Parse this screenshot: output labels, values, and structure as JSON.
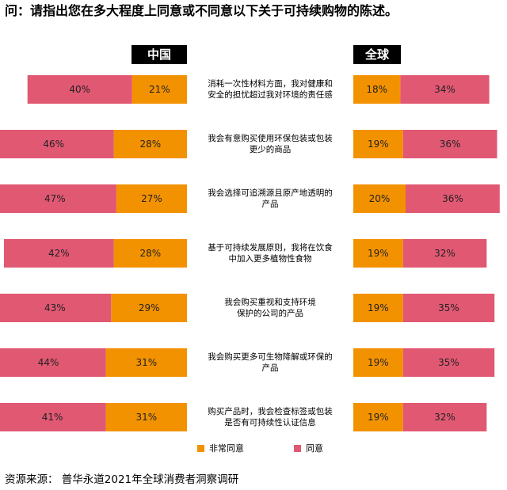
{
  "question": "问：请指出您在多大程度上同意或不同意以下关于可持续购物的陈述。",
  "headers": {
    "china": "中国",
    "global": "全球"
  },
  "colors": {
    "strongly_agree": "#f39200",
    "agree": "#e15873"
  },
  "chart_data": {
    "type": "bar",
    "orientation": "horizontal-stacked-diverging",
    "categories": [
      [
        "消耗一次性材料方面，我对健康和",
        "安全的担忧超过我对环境的责任感"
      ],
      [
        "我会有意购买使用环保包装或包装",
        "更少的商品"
      ],
      [
        "我会选择可追溯源且原产地透明的",
        "产品"
      ],
      [
        "基于可持续发展原则，我将在饮食",
        "中加入更多植物性食物"
      ],
      [
        "我会购买重视和支持环境",
        "保护的公司的产品"
      ],
      [
        "我会购买更多可生物降解或环保的",
        "产品"
      ],
      [
        "购买产品时，我会检查标签或包装",
        "是否有可持续性认证信息"
      ]
    ],
    "panels": [
      {
        "name": "中国",
        "series": [
          {
            "name": "非常同意",
            "values": [
              21,
              28,
              27,
              28,
              29,
              31,
              31
            ]
          },
          {
            "name": "同意",
            "values": [
              40,
              46,
              47,
              42,
              43,
              44,
              41
            ]
          }
        ]
      },
      {
        "name": "全球",
        "series": [
          {
            "name": "非常同意",
            "values": [
              18,
              19,
              20,
              19,
              19,
              19,
              19
            ]
          },
          {
            "name": "同意",
            "values": [
              34,
              36,
              36,
              32,
              35,
              35,
              32
            ]
          }
        ]
      }
    ],
    "unit": "%",
    "legend": [
      "非常同意",
      "同意"
    ],
    "legend_position": "bottom"
  },
  "source": "资源来源：  普华永道2021年全球消费者洞察调研"
}
